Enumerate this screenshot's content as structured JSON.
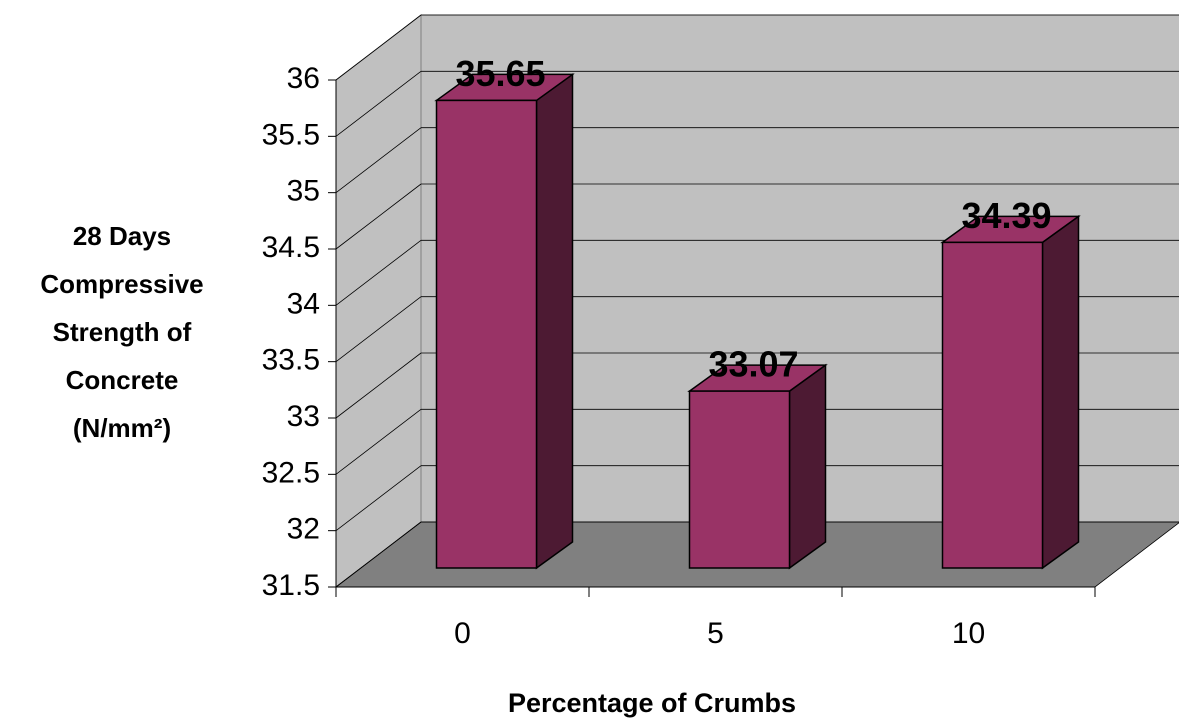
{
  "chart_data": {
    "type": "bar3d",
    "ylabel_lines": [
      "28 Days",
      "Compressive",
      "Strength of",
      "Concrete",
      "(N/mm²)"
    ],
    "xlabel": "Percentage of Crumbs",
    "categories": [
      "0",
      "5",
      "10"
    ],
    "values": [
      35.65,
      33.07,
      34.39
    ],
    "color": "#993366",
    "ylim": [
      31.5,
      36
    ],
    "yticks": [
      31.5,
      32,
      32.5,
      33,
      33.5,
      34,
      34.5,
      35,
      35.5,
      36
    ],
    "grid": true
  }
}
